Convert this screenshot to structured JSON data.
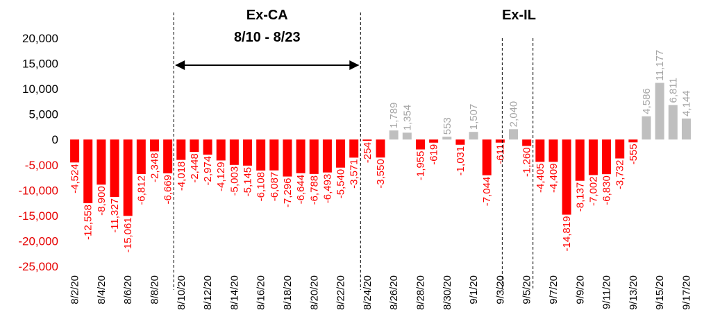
{
  "chart_data": {
    "type": "bar",
    "title": "",
    "xlabel": "",
    "ylabel": "",
    "ylim": [
      -25000,
      20000
    ],
    "yticks": [
      20000,
      15000,
      10000,
      5000,
      0,
      -5000,
      -10000,
      -15000,
      -20000,
      -25000
    ],
    "ytick_labels": [
      "20,000",
      "15,000",
      "10,000",
      "5,000",
      "0",
      "-5,000",
      "-10,000",
      "-15,000",
      "-20,000",
      "-25,000"
    ],
    "grid": false,
    "colors": {
      "negative": "#ff0000",
      "positive": "#bfbfbf",
      "negative_text": "#ff0000",
      "positive_text": "#a6a6a6"
    },
    "categories": [
      "8/2/20",
      "8/3/20",
      "8/4/20",
      "8/5/20",
      "8/6/20",
      "8/7/20",
      "8/8/20",
      "8/9/20",
      "8/10/20",
      "8/11/20",
      "8/12/20",
      "8/13/20",
      "8/14/20",
      "8/15/20",
      "8/16/20",
      "8/17/20",
      "8/18/20",
      "8/19/20",
      "8/20/20",
      "8/21/20",
      "8/22/20",
      "8/23/20",
      "8/24/20",
      "8/25/20",
      "8/26/20",
      "8/27/20",
      "8/28/20",
      "8/29/20",
      "8/30/20",
      "8/31/20",
      "9/1/20",
      "9/2/20",
      "9/3/20",
      "9/4/20",
      "9/5/20",
      "9/6/20",
      "9/7/20",
      "9/8/20",
      "9/9/20",
      "9/10/20",
      "9/11/20",
      "9/12/20",
      "9/13/20",
      "9/14/20",
      "9/15/20",
      "9/16/20",
      "9/17/20"
    ],
    "tick_labels": [
      "8/2/20",
      "8/4/20",
      "8/6/20",
      "8/8/20",
      "8/10/20",
      "8/12/20",
      "8/14/20",
      "8/16/20",
      "8/18/20",
      "8/20/20",
      "8/22/20",
      "8/24/20",
      "8/26/20",
      "8/28/20",
      "8/30/20",
      "9/1/20",
      "9/3/20",
      "9/5/20",
      "9/7/20",
      "9/9/20",
      "9/11/20",
      "9/13/20",
      "9/15/20",
      "9/17/20"
    ],
    "values": [
      -4524,
      -12558,
      -8900,
      -11327,
      -15061,
      -6812,
      -2348,
      -6669,
      -4018,
      -2448,
      -2974,
      -4129,
      -5003,
      -5145,
      -6108,
      -6087,
      -7296,
      -6644,
      -6788,
      -6493,
      -5540,
      -3571,
      -254,
      -3550,
      1789,
      1354,
      -1955,
      -619,
      553,
      -1031,
      1507,
      -7044,
      -611,
      2040,
      -1260,
      -4405,
      -4409,
      -14819,
      -8137,
      -7002,
      -6830,
      -3732,
      -555,
      4586,
      11177,
      6811,
      4144
    ],
    "data_labels": [
      "-4,524",
      "-12,558",
      "-8,900",
      "-11,327",
      "-15,061",
      "-6,812",
      "-2,348",
      "-6,669",
      "-4,018",
      "-2,448",
      "-2,974",
      "-4,129",
      "-5,003",
      "-5,145",
      "-6,108",
      "-6,087",
      "-7,296",
      "-6,644",
      "-6,788",
      "-6,493",
      "-5,540",
      "-3,571",
      "-254",
      "-3,550",
      "1,789",
      "1,354",
      "-1,955",
      "-619",
      "553",
      "-1,031",
      "1,507",
      "-7,044",
      "-611",
      "2,040",
      "-1,260",
      "-4,405",
      "-4,409",
      "-14,819",
      "-8,137",
      "-7,002",
      "-6,830",
      "-3,732",
      "-555",
      "4,586",
      "11,177",
      "6,811",
      "4,144"
    ],
    "annotations": [
      {
        "text": "Ex-CA",
        "sub": "8/10 - 8/23",
        "from": "8/10/20",
        "to": "8/23/20"
      },
      {
        "text": "Ex-IL",
        "from": "9/3/20",
        "to": "9/5/20"
      }
    ]
  }
}
